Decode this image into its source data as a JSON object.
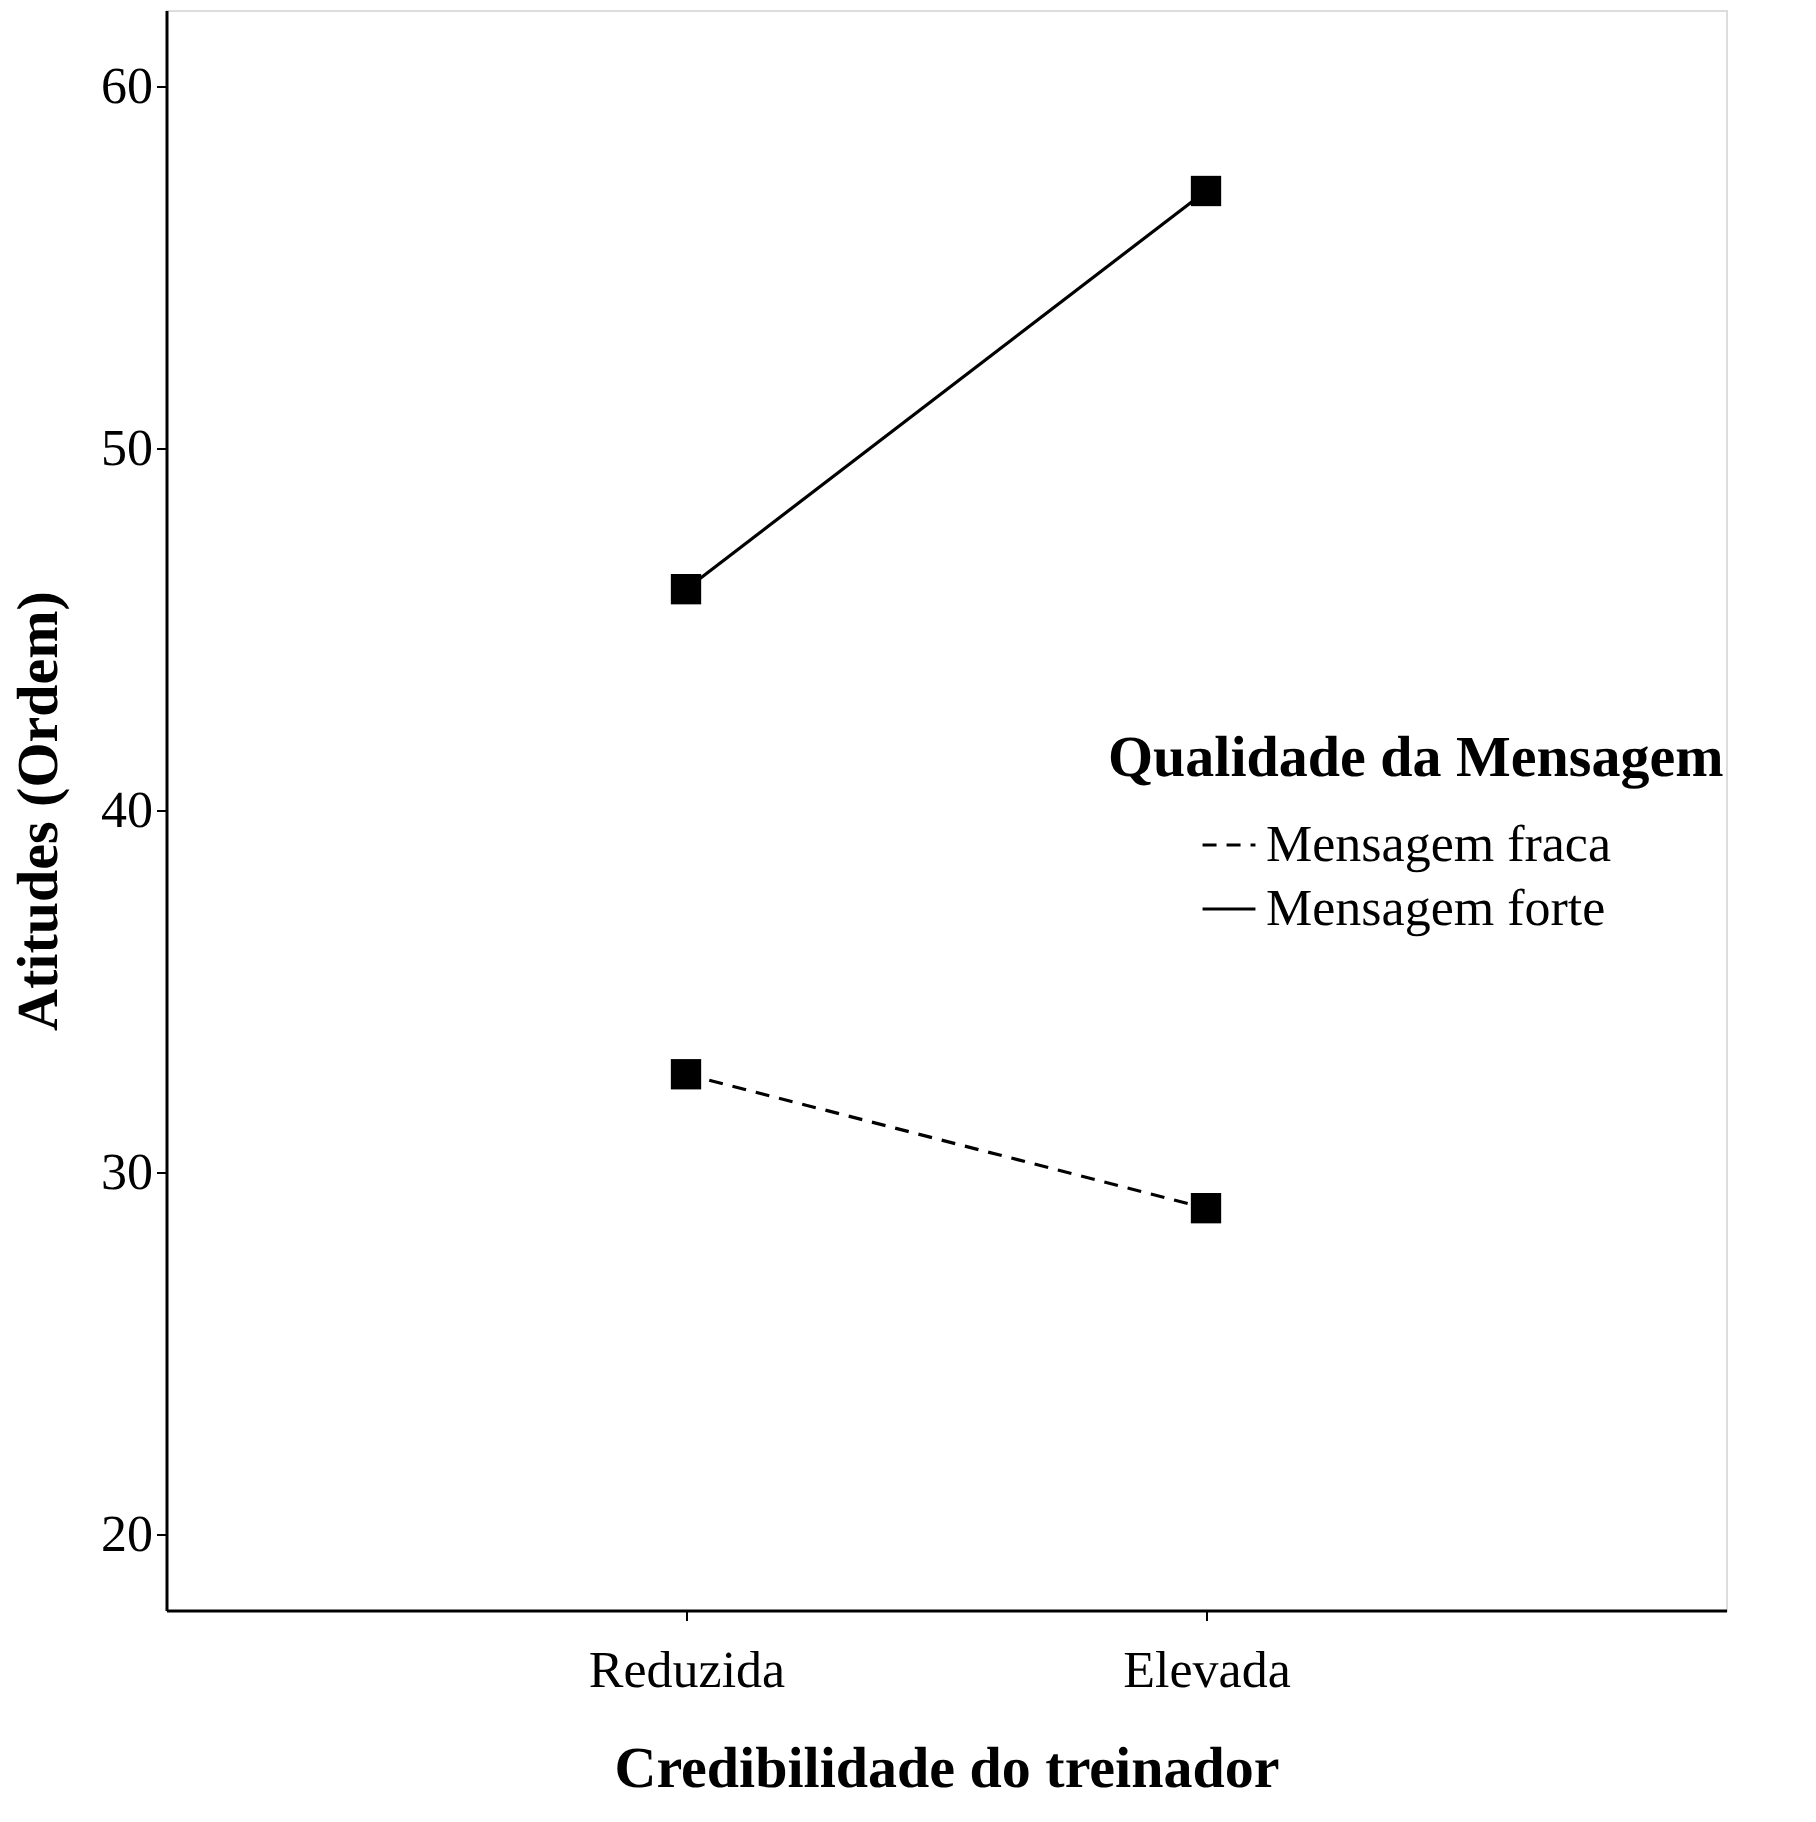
{
  "chart_data": {
    "type": "line",
    "xlabel": "Credibilidade do treinador",
    "ylabel": "Atitudes (Ordem)",
    "legend_title": "Qualidade da Mensagem",
    "categories": [
      "Reduzida",
      "Elevada"
    ],
    "series": [
      {
        "name": "Mensagem fraca",
        "color": "#000000",
        "values": [
          32.7,
          29.0
        ],
        "line_style": "dashed"
      },
      {
        "name": "Mensagem forte",
        "color": "#000000",
        "values": [
          46.1,
          57.1
        ],
        "line_style": "solid"
      }
    ],
    "ylim": [
      17.9,
      62.1
    ],
    "yticks": [
      20,
      30,
      40,
      50,
      60
    ],
    "marker": "square",
    "legend": "right",
    "grid": false
  }
}
